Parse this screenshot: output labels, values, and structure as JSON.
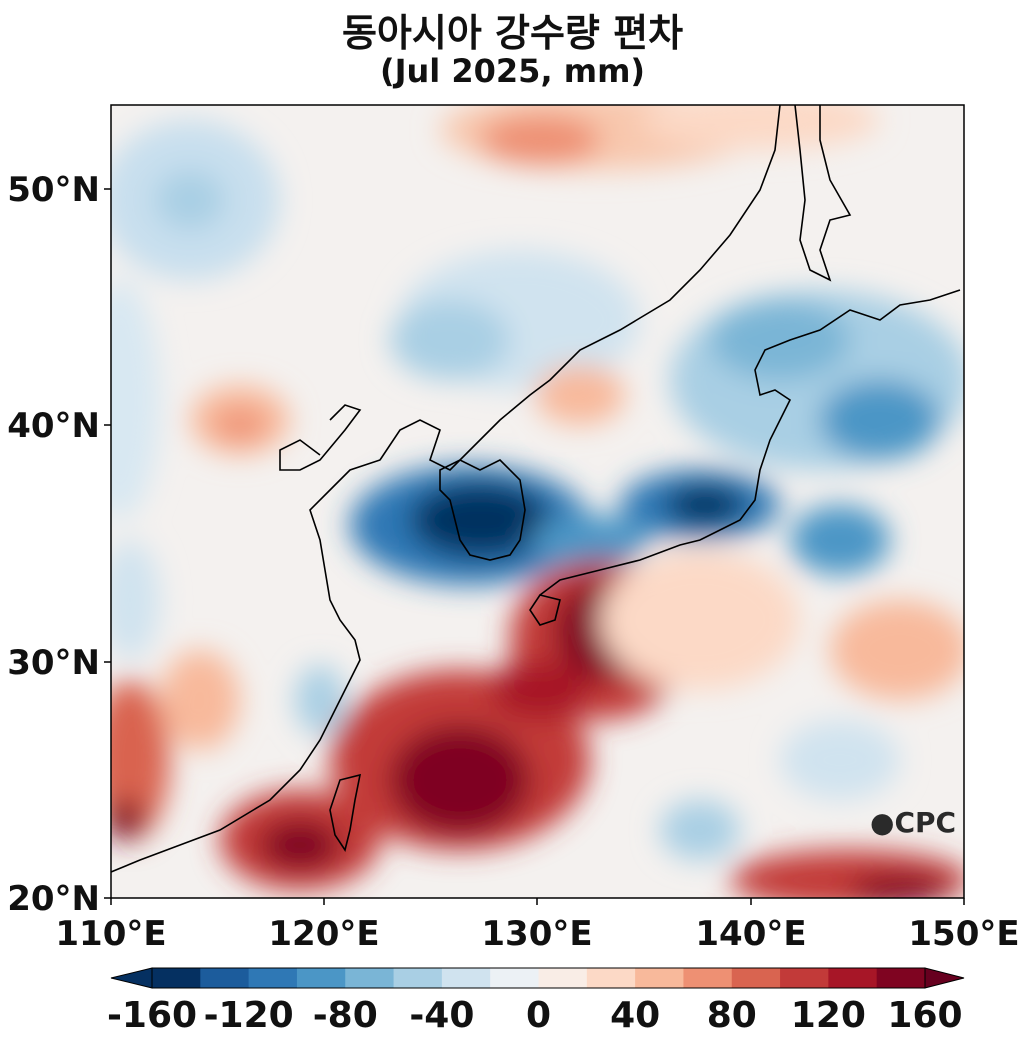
{
  "title": {
    "line1": "동아시아 강수량 편차",
    "line2": "(Jul 2025, mm)"
  },
  "logo": "CPC",
  "map": {
    "lon_range": [
      110,
      150
    ],
    "lat_range": [
      20,
      53.5
    ],
    "lat_ticks": [
      "50°N",
      "40°N",
      "30°N",
      "20°N"
    ],
    "lon_ticks": [
      "110°E",
      "120°E",
      "130°E",
      "140°E",
      "150°E"
    ]
  },
  "colorbar": {
    "tick_labels": [
      "-160",
      "-120",
      "-80",
      "-40",
      "0",
      "40",
      "80",
      "120",
      "160"
    ],
    "levels": [
      -160,
      -140,
      -120,
      -100,
      -80,
      -60,
      -40,
      -20,
      0,
      20,
      40,
      60,
      80,
      100,
      120,
      140,
      160
    ],
    "colors": [
      "#053061",
      "#1c5c9c",
      "#2f78b5",
      "#4b96c6",
      "#7ab5d6",
      "#a9cfe4",
      "#d0e3ef",
      "#ecf1f5",
      "#f9ede6",
      "#fcd9c6",
      "#f8b99b",
      "#ee9073",
      "#d96450",
      "#c23a39",
      "#a71627",
      "#7f0421"
    ],
    "extend": "both",
    "under_color": "#053061",
    "over_color": "#67001f"
  }
}
